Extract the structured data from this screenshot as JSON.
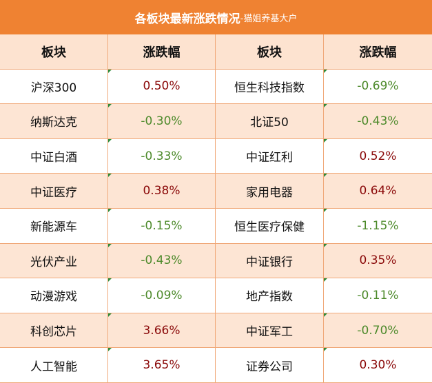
{
  "header": {
    "title": "各板块最新涨跌情况",
    "subtitle": "-猫姐养基大户"
  },
  "table": {
    "columns": [
      "板块",
      "涨跌幅",
      "板块",
      "涨跌幅"
    ],
    "rows": [
      [
        "沪深300",
        "0.50%",
        "恒生科技指数",
        "-0.69%"
      ],
      [
        "纳斯达克",
        "-0.30%",
        "北证50",
        "-0.43%"
      ],
      [
        "中证白酒",
        "-0.33%",
        "中证红利",
        "0.52%"
      ],
      [
        "中证医疗",
        "0.38%",
        "家用电器",
        "0.64%"
      ],
      [
        "新能源车",
        "-0.15%",
        "恒生医疗保健",
        "-1.15%"
      ],
      [
        "光伏产业",
        "-0.43%",
        "中证银行",
        "0.35%"
      ],
      [
        "动漫游戏",
        "-0.09%",
        "地产指数",
        "-0.11%"
      ],
      [
        "科创芯片",
        "3.66%",
        "中证军工",
        "-0.70%"
      ],
      [
        "人工智能",
        "3.65%",
        "证券公司",
        "0.30%"
      ]
    ]
  }
}
